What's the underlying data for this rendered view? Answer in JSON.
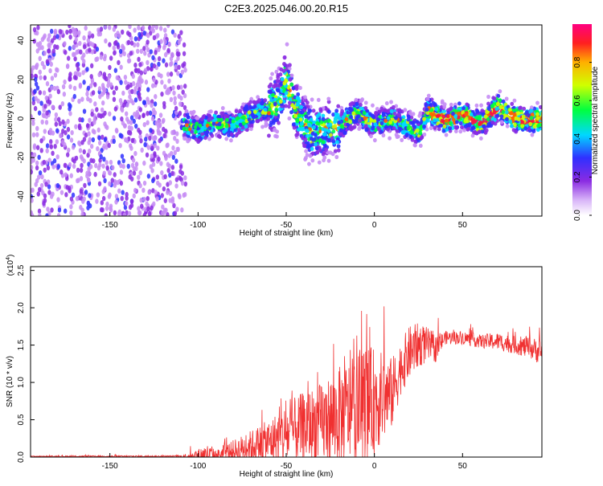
{
  "title": "C2E3.2025.046.00.20.R15",
  "chart_data": [
    {
      "type": "heatmap",
      "xlabel": "Height of straight line (km)",
      "ylabel": "Frequency (Hz)",
      "xlim": [
        -195,
        95
      ],
      "ylim": [
        -50,
        48
      ],
      "xticks": [
        -150,
        -100,
        -50,
        0,
        50
      ],
      "yticks": [
        -40,
        -20,
        0,
        20,
        40
      ],
      "colorbar": {
        "label": "Normalized spectral amplitude",
        "ticks": [
          "0.0",
          "0.2",
          "0.4",
          "0.6",
          "0.8"
        ],
        "range": [
          0,
          1
        ]
      },
      "ridge": {
        "x": [
          -108,
          -100,
          -90,
          -80,
          -70,
          -60,
          -55,
          -50,
          -45,
          -40,
          -35,
          -30,
          -20,
          -10,
          0,
          10,
          20,
          25,
          30,
          40,
          50,
          60,
          70,
          80,
          90,
          95
        ],
        "y": [
          -3,
          -6,
          -2,
          -4,
          2,
          5,
          8,
          20,
          6,
          -3,
          -8,
          -6,
          -4,
          3,
          -3,
          0,
          -4,
          -8,
          4,
          -1,
          2,
          -3,
          6,
          0,
          -1,
          0
        ]
      }
    },
    {
      "type": "line",
      "xlabel": "Height of straight line (km)",
      "ylabel": "SNR (10 * v/v)",
      "exponent_label": "(x10",
      "exponent_power": "4",
      "exponent_close": ")",
      "xlim": [
        -195,
        95
      ],
      "ylim": [
        0,
        2.55
      ],
      "xticks": [
        -150,
        -100,
        -50,
        0,
        50
      ],
      "yticks": [
        "0.0",
        "0.5",
        "1.0",
        "1.5",
        "2.0",
        "2.5"
      ],
      "line_color": "#f03030",
      "envelope": {
        "x": [
          -195,
          -110,
          -100,
          -95,
          -90,
          -80,
          -70,
          -60,
          -50,
          -40,
          -30,
          -20,
          -10,
          -5,
          0,
          10,
          15,
          20,
          25,
          30,
          35,
          40,
          50,
          60,
          70,
          80,
          90,
          95
        ],
        "base": [
          0.01,
          0.01,
          0.02,
          0.03,
          0.03,
          0.08,
          0.15,
          0.2,
          0.3,
          0.4,
          0.45,
          0.55,
          0.65,
          0.7,
          0.75,
          0.85,
          1.2,
          1.4,
          1.5,
          1.5,
          1.45,
          1.6,
          1.6,
          1.55,
          1.55,
          1.5,
          1.45,
          1.4
        ],
        "spread": [
          0.01,
          0.02,
          0.15,
          0.25,
          0.1,
          0.25,
          0.35,
          0.5,
          0.7,
          0.8,
          0.9,
          1.1,
          1.2,
          1.3,
          1.2,
          0.8,
          0.6,
          0.6,
          0.5,
          0.4,
          0.3,
          0.15,
          0.15,
          0.15,
          0.2,
          0.2,
          0.25,
          0.3
        ]
      }
    }
  ]
}
